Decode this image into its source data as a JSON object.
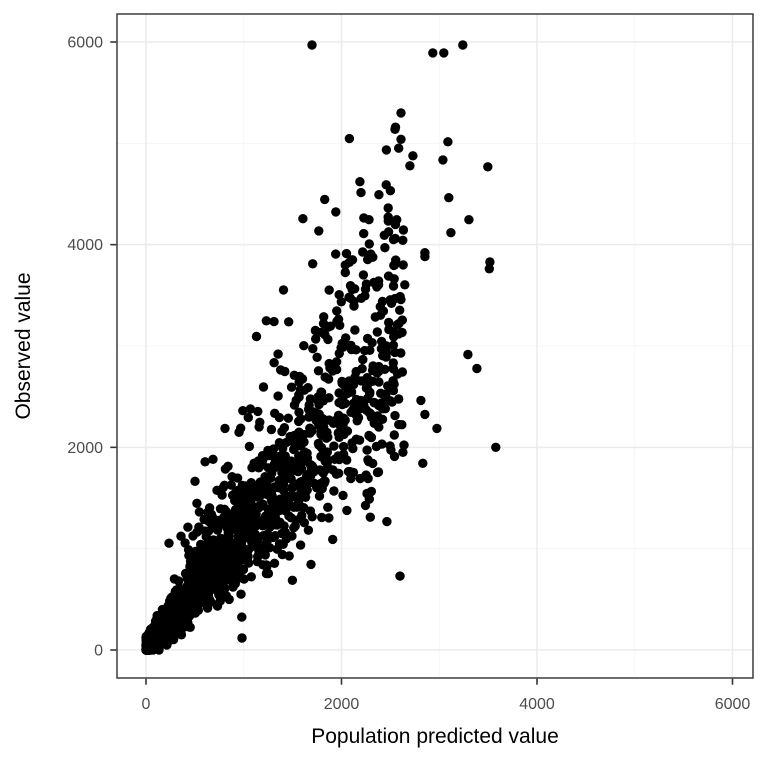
{
  "page": {
    "background": "#FFFFFF",
    "description": "ggplot2-style scatter plot of observed values versus population predicted values"
  },
  "chart_data": {
    "type": "scatter",
    "title": "",
    "xlabel": "Population predicted value",
    "ylabel": "Observed value",
    "x_ticks": [
      0,
      2000,
      4000,
      6000
    ],
    "y_ticks": [
      0,
      2000,
      4000,
      6000
    ],
    "x_minor_gridlines": [
      1000,
      3000,
      5000
    ],
    "y_minor_gridlines": [
      1000,
      3000,
      5000
    ],
    "xlim": [
      -300,
      6210
    ],
    "ylim": [
      -280,
      6280
    ],
    "legend": "none",
    "grid": "major-and-minor",
    "marker": "filled-circle",
    "point_radius_px": 4.7,
    "approx_point_count": 1650,
    "pattern_summary": "Dense solid cone of points from the origin rising along roughly y = 1.2x up to about x=2600; spread grows with predicted value; sparse outliers extend to (3241,5970), (3047,5892), (3518,3829), (3579,2000) and a low straggler near (982,118). No data beyond x of about 3600.",
    "style": {
      "point_color": "#000000",
      "major_grid_color": "#EBEBEB",
      "minor_grid_color": "#F4F4F4",
      "panel_border_color": "#2F2F2F",
      "tick_color": "#333333",
      "tick_label_color": "#4D4D4D",
      "axis_title_color": "#000000",
      "panel_background": "#FFFFFF"
    },
    "cloud_generator": {
      "seed": 7,
      "count": 1600,
      "x_max": 2650,
      "x_min": 1,
      "x_exponent": 1.9,
      "ratio_log_mean": 0.16,
      "ratio_log_sd": 0.28,
      "additive_noise_sd": 60,
      "y_clamp": [
        1,
        5970
      ]
    },
    "outlier_points": [
      [
        3241,
        5970
      ],
      [
        2934,
        5892
      ],
      [
        3047,
        5892
      ],
      [
        3088,
        5015
      ],
      [
        2730,
        4877
      ],
      [
        3037,
        4837
      ],
      [
        2700,
        4778
      ],
      [
        3497,
        4768
      ],
      [
        2188,
        4621
      ],
      [
        2383,
        4493
      ],
      [
        3098,
        4463
      ],
      [
        1605,
        4256
      ],
      [
        2281,
        4246
      ],
      [
        3303,
        4246
      ],
      [
        3119,
        4118
      ],
      [
        2444,
        3970
      ],
      [
        2853,
        3921
      ],
      [
        2853,
        3882
      ],
      [
        3518,
        3829
      ],
      [
        3512,
        3762
      ],
      [
        2608,
        3458
      ],
      [
        3293,
        2916
      ],
      [
        3385,
        2778
      ],
      [
        2812,
        2463
      ],
      [
        2853,
        2325
      ],
      [
        2976,
        2187
      ],
      [
        2628,
        1951
      ],
      [
        3579,
        2000
      ],
      [
        2832,
        1842
      ],
      [
        808,
        2187
      ],
      [
        951,
        2148
      ],
      [
        685,
        1882
      ],
      [
        839,
        1813
      ],
      [
        501,
        1665
      ],
      [
        726,
        1576
      ],
      [
        521,
        1448
      ],
      [
        429,
        1212
      ],
      [
        358,
        1123
      ],
      [
        235,
        1054
      ],
      [
        2598,
        729
      ],
      [
        982,
        118
      ],
      [
        980,
        325
      ]
    ]
  }
}
